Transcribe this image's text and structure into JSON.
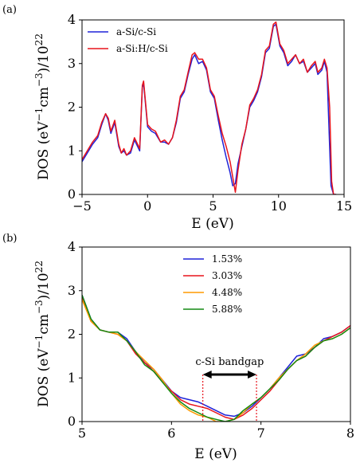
{
  "colors": {
    "blue": "#1f22d8",
    "red": "#e8141c",
    "orange": "#ff9a00",
    "green": "#138a13"
  },
  "chart_data": [
    {
      "panel_label": "(a)",
      "type": "line",
      "xlabel": "E (eV)",
      "ylabel_html": "DOS (eV−1cm−3)/1022",
      "ylabel_parts": {
        "pre": "DOS (eV",
        "sup1": "−1",
        "mid": "cm",
        "sup2": "−3",
        "post": ")/10",
        "sup3": "22"
      },
      "xlim": [
        -5,
        15
      ],
      "ylim": [
        0,
        4
      ],
      "xticks": [
        -5,
        0,
        5,
        10,
        15
      ],
      "yticks": [
        0,
        1,
        2,
        3,
        4
      ],
      "legend_position": "top-left",
      "series": [
        {
          "name": "a-Si/c-Si",
          "color": "#1f22d8",
          "x": [
            -5,
            -4.6,
            -4.2,
            -3.8,
            -3.5,
            -3.2,
            -3.0,
            -2.8,
            -2.5,
            -2.2,
            -2.0,
            -1.8,
            -1.6,
            -1.3,
            -1.0,
            -0.6,
            -0.4,
            -0.3,
            0,
            0.3,
            0.6,
            1.0,
            1.3,
            1.6,
            1.9,
            2.2,
            2.5,
            2.8,
            3.1,
            3.4,
            3.6,
            3.9,
            4.2,
            4.5,
            4.8,
            5.1,
            5.4,
            5.7,
            6.0,
            6.3,
            6.5,
            6.7,
            6.9,
            7.2,
            7.5,
            7.8,
            8.1,
            8.4,
            8.7,
            9.0,
            9.3,
            9.6,
            9.8,
            10.1,
            10.4,
            10.7,
            11.0,
            11.3,
            11.6,
            11.9,
            12.2,
            12.5,
            12.8,
            13.0,
            13.3,
            13.5,
            13.7,
            13.85,
            14.0,
            14.2,
            14.4
          ],
          "y": [
            0.75,
            0.95,
            1.15,
            1.3,
            1.6,
            1.85,
            1.7,
            1.4,
            1.65,
            1.1,
            0.95,
            1.0,
            0.9,
            0.95,
            1.25,
            1.0,
            2.45,
            2.55,
            1.55,
            1.45,
            1.4,
            1.2,
            1.2,
            1.15,
            1.3,
            1.65,
            2.2,
            2.35,
            2.75,
            3.1,
            3.2,
            3.0,
            3.05,
            2.85,
            2.35,
            2.2,
            1.7,
            1.25,
            0.85,
            0.5,
            0.2,
            0.25,
            0.7,
            1.1,
            1.5,
            2.0,
            2.15,
            2.35,
            2.7,
            3.25,
            3.35,
            3.85,
            3.9,
            3.4,
            3.25,
            2.95,
            3.05,
            3.2,
            3.0,
            3.05,
            2.8,
            2.9,
            3.0,
            2.75,
            2.85,
            3.05,
            2.8,
            1.5,
            0.2,
            0.0,
            0.0
          ]
        },
        {
          "name": "a-Si:H/c-Si",
          "color": "#e8141c",
          "x": [
            -5,
            -4.6,
            -4.2,
            -3.8,
            -3.5,
            -3.2,
            -3.0,
            -2.8,
            -2.5,
            -2.2,
            -2.0,
            -1.8,
            -1.6,
            -1.3,
            -1.0,
            -0.6,
            -0.4,
            -0.3,
            0,
            0.3,
            0.6,
            1.0,
            1.3,
            1.6,
            1.9,
            2.2,
            2.5,
            2.8,
            3.1,
            3.4,
            3.6,
            3.9,
            4.2,
            4.5,
            4.8,
            5.1,
            5.4,
            5.7,
            6.0,
            6.3,
            6.5,
            6.7,
            6.9,
            7.2,
            7.5,
            7.8,
            8.1,
            8.4,
            8.7,
            9.0,
            9.3,
            9.6,
            9.8,
            10.1,
            10.4,
            10.7,
            11.0,
            11.3,
            11.6,
            11.9,
            12.2,
            12.5,
            12.8,
            13.0,
            13.3,
            13.5,
            13.7,
            13.9,
            14.05,
            14.2,
            14.4
          ],
          "y": [
            0.8,
            1.0,
            1.2,
            1.35,
            1.65,
            1.85,
            1.75,
            1.45,
            1.7,
            1.15,
            0.95,
            1.05,
            0.9,
            1.0,
            1.3,
            1.05,
            2.5,
            2.6,
            1.6,
            1.5,
            1.45,
            1.2,
            1.25,
            1.15,
            1.3,
            1.7,
            2.25,
            2.4,
            2.8,
            3.2,
            3.25,
            3.1,
            3.1,
            2.9,
            2.4,
            2.25,
            1.8,
            1.4,
            1.1,
            0.75,
            0.4,
            0.05,
            0.55,
            1.15,
            1.5,
            2.05,
            2.2,
            2.4,
            2.75,
            3.3,
            3.4,
            3.9,
            3.95,
            3.45,
            3.3,
            3.0,
            3.1,
            3.2,
            3.0,
            3.1,
            2.8,
            2.95,
            3.05,
            2.8,
            2.9,
            3.1,
            2.9,
            2.0,
            0.3,
            0.0,
            0.0
          ]
        }
      ]
    },
    {
      "panel_label": "(b)",
      "type": "line",
      "xlabel": "E (eV)",
      "ylabel_parts": {
        "pre": "DOS (eV",
        "sup1": "−1",
        "mid": "cm",
        "sup2": "−3",
        "post": ")/10",
        "sup3": "22"
      },
      "xlim": [
        5,
        8
      ],
      "ylim": [
        0,
        4
      ],
      "xticks": [
        5,
        6,
        7,
        8
      ],
      "yticks": [
        0,
        1,
        2,
        3,
        4
      ],
      "legend_position": "top-center",
      "annotation": {
        "text": "c-Si bandgap",
        "x_start": 6.35,
        "x_end": 6.95
      },
      "series": [
        {
          "name": "1.53%",
          "color": "#1f22d8",
          "x": [
            5.0,
            5.1,
            5.2,
            5.3,
            5.4,
            5.5,
            5.6,
            5.7,
            5.8,
            5.9,
            6.0,
            6.1,
            6.2,
            6.3,
            6.4,
            6.5,
            6.6,
            6.7,
            6.8,
            6.9,
            7.0,
            7.1,
            7.2,
            7.3,
            7.4,
            7.5,
            7.6,
            7.7,
            7.8,
            7.9,
            8.0
          ],
          "y": [
            2.9,
            2.35,
            2.1,
            2.05,
            2.05,
            1.9,
            1.6,
            1.35,
            1.2,
            0.95,
            0.7,
            0.55,
            0.5,
            0.45,
            0.35,
            0.25,
            0.15,
            0.12,
            0.2,
            0.35,
            0.55,
            0.75,
            1.0,
            1.25,
            1.5,
            1.55,
            1.7,
            1.9,
            1.95,
            2.05,
            2.2
          ]
        },
        {
          "name": "3.03%",
          "color": "#e8141c",
          "x": [
            5.0,
            5.1,
            5.2,
            5.3,
            5.4,
            5.5,
            5.6,
            5.7,
            5.8,
            5.9,
            6.0,
            6.1,
            6.2,
            6.3,
            6.4,
            6.5,
            6.6,
            6.7,
            6.8,
            6.9,
            7.0,
            7.1,
            7.2,
            7.3,
            7.4,
            7.5,
            7.6,
            7.7,
            7.8,
            7.9,
            8.0
          ],
          "y": [
            2.85,
            2.3,
            2.1,
            2.05,
            2.0,
            1.85,
            1.55,
            1.35,
            1.15,
            0.9,
            0.7,
            0.5,
            0.4,
            0.35,
            0.3,
            0.2,
            0.1,
            0.05,
            0.15,
            0.3,
            0.5,
            0.7,
            0.95,
            1.2,
            1.4,
            1.5,
            1.7,
            1.85,
            1.95,
            2.05,
            2.2
          ]
        },
        {
          "name": "4.48%",
          "color": "#ff9a00",
          "x": [
            5.0,
            5.1,
            5.2,
            5.3,
            5.4,
            5.5,
            5.6,
            5.7,
            5.8,
            5.9,
            6.0,
            6.1,
            6.2,
            6.3,
            6.4,
            6.5,
            6.6,
            6.7,
            6.8,
            6.9,
            7.0,
            7.1,
            7.2,
            7.3,
            7.4,
            7.5,
            7.6,
            7.7,
            7.8,
            7.9,
            8.0
          ],
          "y": [
            2.8,
            2.3,
            2.1,
            2.05,
            2.0,
            1.85,
            1.6,
            1.4,
            1.2,
            0.95,
            0.65,
            0.4,
            0.25,
            0.15,
            0.1,
            0.0,
            0.0,
            0.05,
            0.2,
            0.4,
            0.55,
            0.75,
            1.0,
            1.2,
            1.4,
            1.55,
            1.75,
            1.85,
            1.9,
            2.0,
            2.15
          ]
        },
        {
          "name": "5.88%",
          "color": "#138a13",
          "x": [
            5.0,
            5.1,
            5.2,
            5.3,
            5.4,
            5.5,
            5.6,
            5.7,
            5.8,
            5.9,
            6.0,
            6.1,
            6.2,
            6.3,
            6.4,
            6.5,
            6.6,
            6.7,
            6.8,
            6.9,
            7.0,
            7.1,
            7.2,
            7.3,
            7.4,
            7.5,
            7.6,
            7.7,
            7.8,
            7.9,
            8.0
          ],
          "y": [
            2.9,
            2.35,
            2.1,
            2.05,
            2.05,
            1.85,
            1.6,
            1.3,
            1.15,
            0.9,
            0.65,
            0.45,
            0.3,
            0.2,
            0.1,
            0.05,
            0.0,
            0.05,
            0.25,
            0.4,
            0.55,
            0.75,
            0.95,
            1.2,
            1.4,
            1.5,
            1.7,
            1.85,
            1.9,
            2.0,
            2.15
          ]
        }
      ]
    }
  ]
}
